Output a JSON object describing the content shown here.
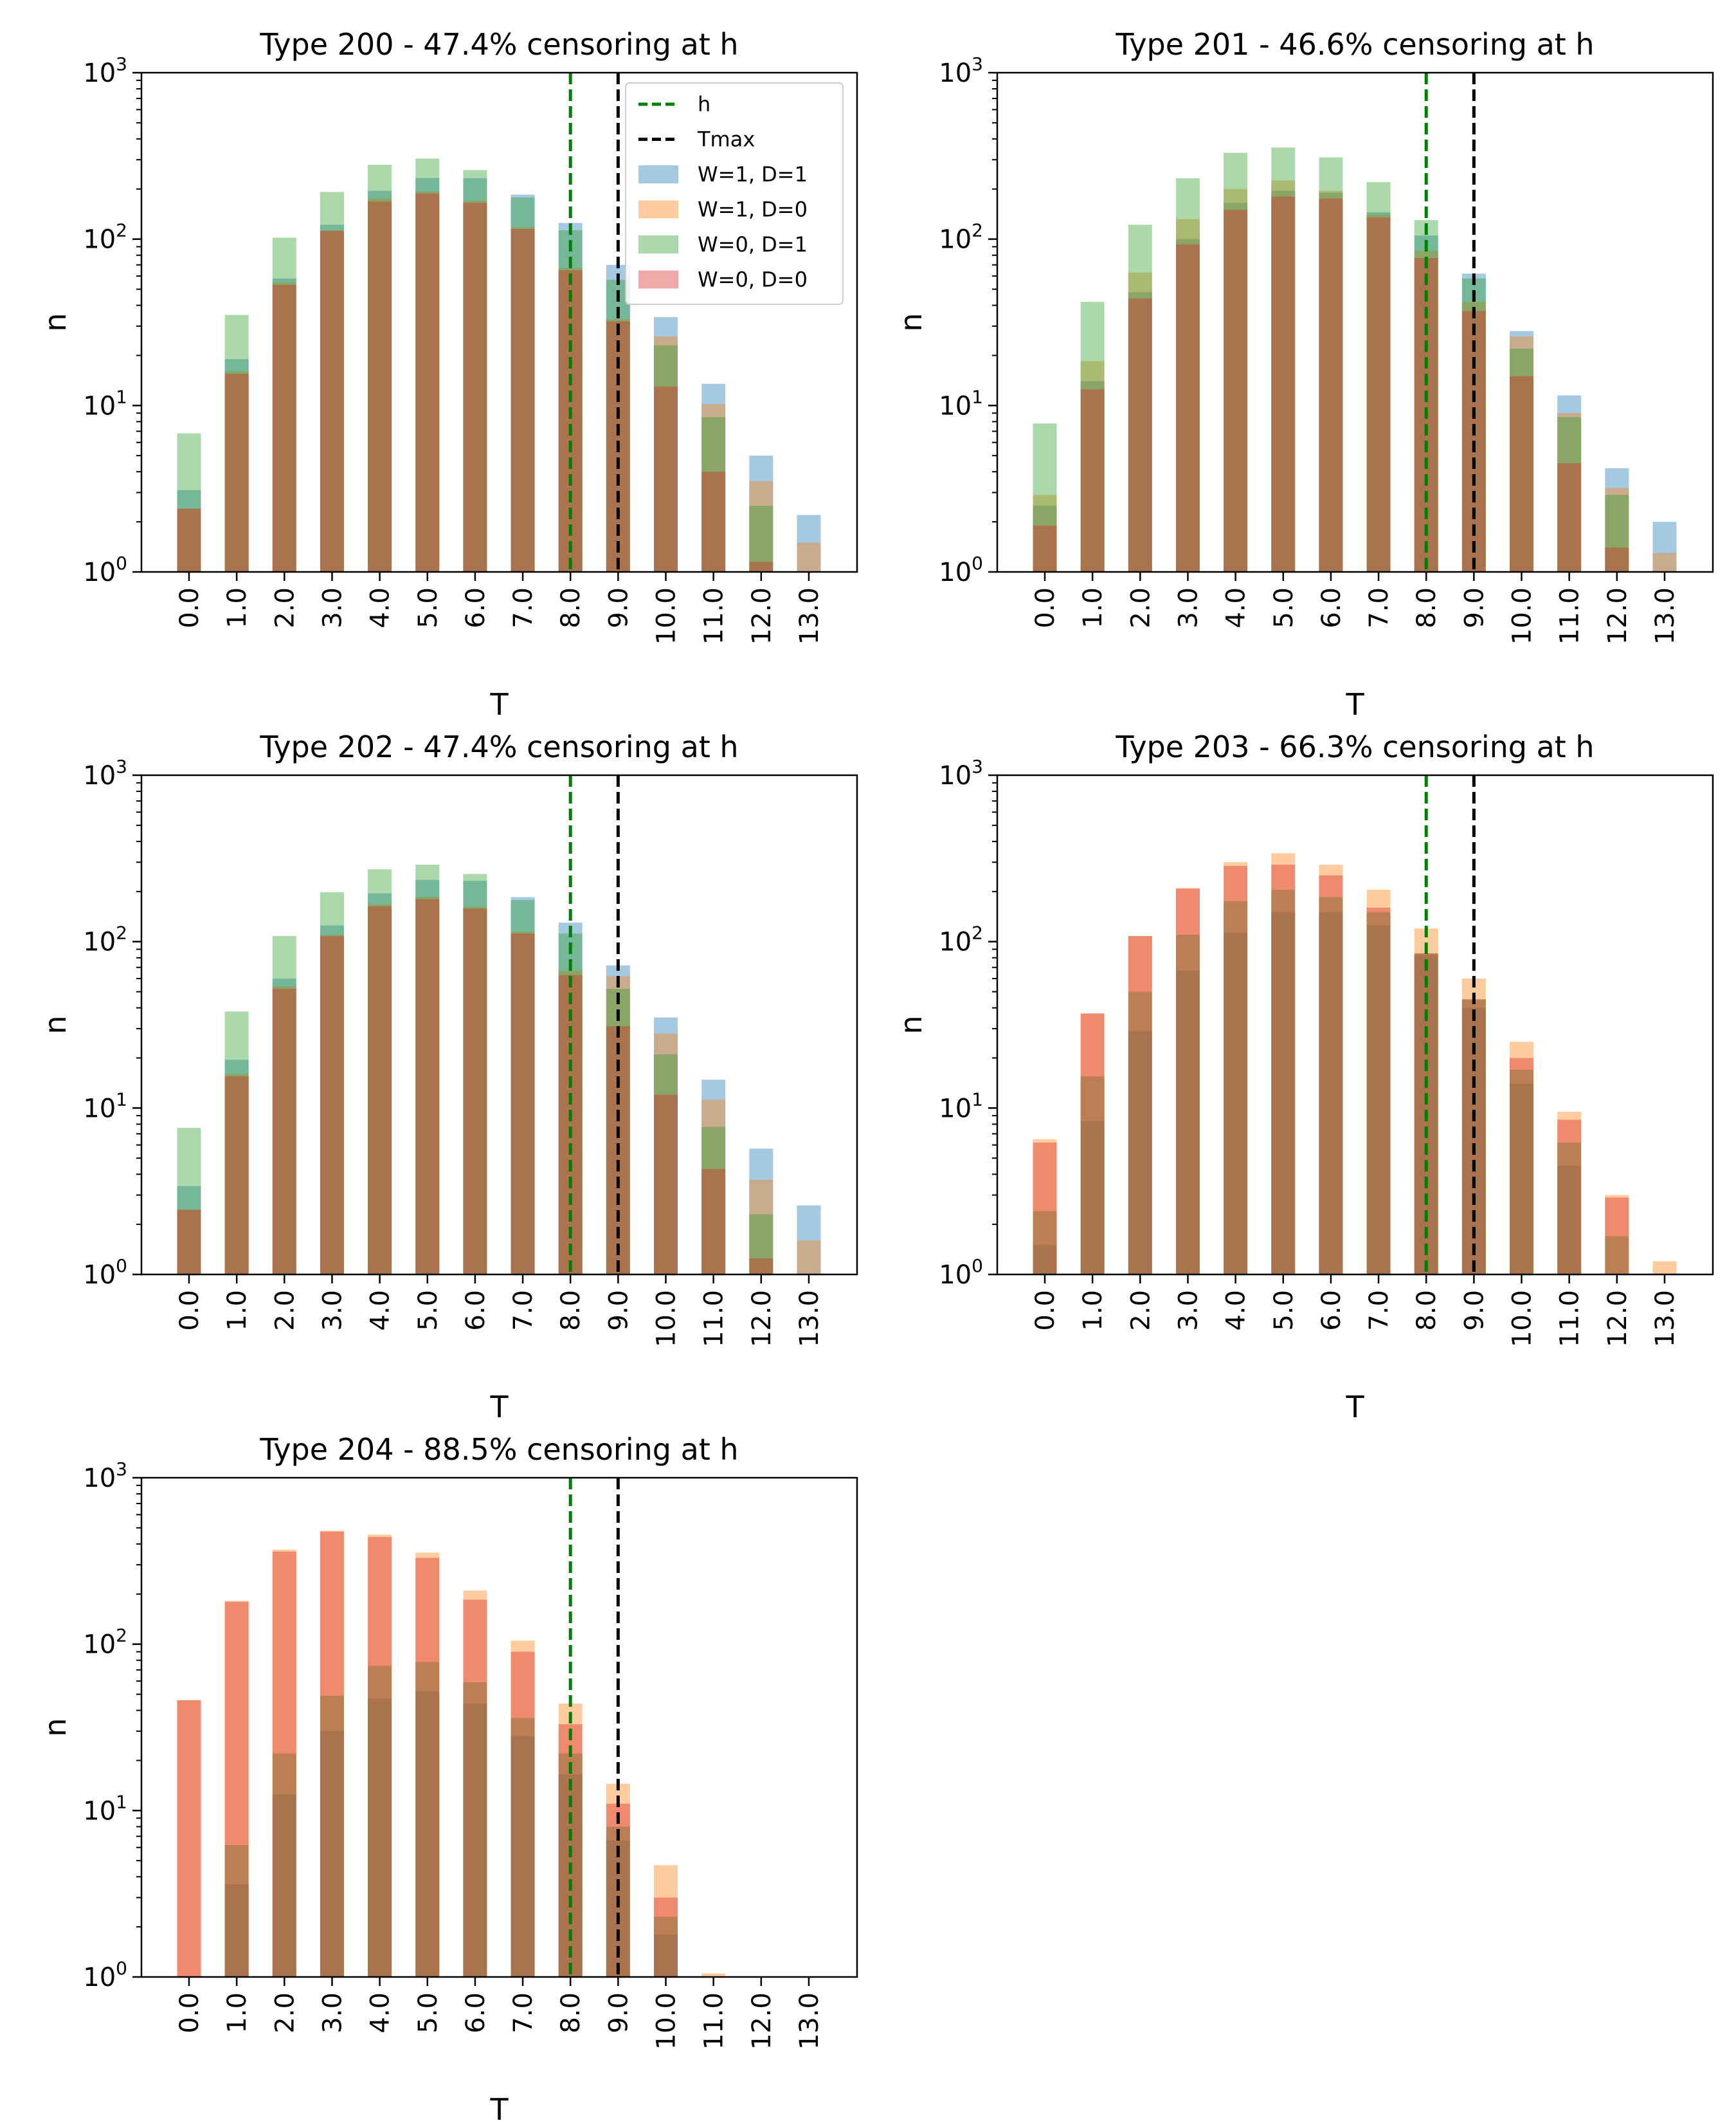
{
  "figure": {
    "legend": {
      "position": "top-right of first panel",
      "entries": [
        {
          "label": "h",
          "kind": "line",
          "color": "#008000",
          "dashed": true
        },
        {
          "label": "Tmax",
          "kind": "line",
          "color": "#000000",
          "dashed": true
        },
        {
          "label": "W=1, D=1",
          "kind": "patch",
          "color": "#1f77b4"
        },
        {
          "label": "W=1, D=0",
          "kind": "patch",
          "color": "#ff7f0e"
        },
        {
          "label": "W=0, D=1",
          "kind": "patch",
          "color": "#2ca02c"
        },
        {
          "label": "W=0, D=0",
          "kind": "patch",
          "color": "#d62728"
        }
      ]
    },
    "series_colors": {
      "W=1, D=1": "#1f77b4",
      "W=1, D=0": "#ff7f0e",
      "W=0, D=1": "#2ca02c",
      "W=0, D=0": "#d62728"
    },
    "bar_alpha": 0.4
  },
  "chart_data": [
    {
      "type": "bar",
      "title": "Type 200 - 47.4% censoring at h",
      "xlabel": "T",
      "ylabel": "n",
      "yscale": "log",
      "ylim": [
        1,
        1000
      ],
      "ytick_base": "10",
      "ytick_exponents": [
        "0",
        "1",
        "2",
        "3"
      ],
      "categories": [
        "0.0",
        "1.0",
        "2.0",
        "3.0",
        "4.0",
        "5.0",
        "6.0",
        "7.0",
        "8.0",
        "9.0",
        "10.0",
        "11.0",
        "12.0",
        "13.0"
      ],
      "h": 8.0,
      "tmax": 9.0,
      "series": [
        {
          "name": "W=1, D=1",
          "values": [
            3.1,
            19,
            58,
            122,
            195,
            233,
            232,
            185,
            125,
            70,
            34,
            13.5,
            5,
            2.2
          ]
        },
        {
          "name": "W=1, D=0",
          "values": [
            2.4,
            16,
            55,
            113,
            175,
            193,
            170,
            118,
            67,
            33,
            26,
            10.2,
            3.5,
            1.5
          ]
        },
        {
          "name": "W=0, D=1",
          "values": [
            6.8,
            35,
            102,
            192,
            280,
            305,
            260,
            178,
            113,
            57,
            23,
            8.5,
            2.5,
            0
          ]
        },
        {
          "name": "W=0, D=0",
          "values": [
            2.4,
            15.5,
            53,
            112,
            168,
            188,
            165,
            115,
            65,
            32,
            13,
            4,
            1.15,
            0
          ]
        }
      ]
    },
    {
      "type": "bar",
      "title": "Type 201 - 46.6% censoring at h",
      "xlabel": "T",
      "ylabel": "n",
      "yscale": "log",
      "ylim": [
        1,
        1000
      ],
      "ytick_base": "10",
      "ytick_exponents": [
        "0",
        "1",
        "2",
        "3"
      ],
      "categories": [
        "0.0",
        "1.0",
        "2.0",
        "3.0",
        "4.0",
        "5.0",
        "6.0",
        "7.0",
        "8.0",
        "9.0",
        "10.0",
        "11.0",
        "12.0",
        "13.0"
      ],
      "h": 8.0,
      "tmax": 9.0,
      "series": [
        {
          "name": "W=1, D=1",
          "values": [
            2.5,
            14,
            48,
            100,
            165,
            195,
            190,
            145,
            105,
            62,
            28,
            11.5,
            4.2,
            2.0
          ]
        },
        {
          "name": "W=1, D=0",
          "values": [
            2.9,
            18.5,
            63,
            132,
            200,
            225,
            195,
            140,
            85,
            42,
            26,
            9,
            3.2,
            1.3
          ]
        },
        {
          "name": "W=0, D=1",
          "values": [
            7.8,
            42,
            122,
            232,
            330,
            355,
            310,
            220,
            130,
            58,
            22,
            8.5,
            2.9,
            0
          ]
        },
        {
          "name": "W=0, D=0",
          "values": [
            1.9,
            12.5,
            44,
            93,
            150,
            180,
            175,
            135,
            77,
            37,
            15,
            4.5,
            1.4,
            0
          ]
        }
      ]
    },
    {
      "type": "bar",
      "title": "Type 202 - 47.4% censoring at h",
      "xlabel": "T",
      "ylabel": "n",
      "yscale": "log",
      "ylim": [
        1,
        1000
      ],
      "ytick_base": "10",
      "ytick_exponents": [
        "0",
        "1",
        "2",
        "3"
      ],
      "categories": [
        "0.0",
        "1.0",
        "2.0",
        "3.0",
        "4.0",
        "5.0",
        "6.0",
        "7.0",
        "8.0",
        "9.0",
        "10.0",
        "11.0",
        "12.0",
        "13.0"
      ],
      "h": 8.0,
      "tmax": 9.0,
      "series": [
        {
          "name": "W=1, D=1",
          "values": [
            3.4,
            19.5,
            60,
            125,
            195,
            235,
            232,
            185,
            130,
            72,
            35,
            14.8,
            5.7,
            2.6
          ]
        },
        {
          "name": "W=1, D=0",
          "values": [
            2.45,
            16,
            54,
            110,
            168,
            185,
            162,
            115,
            67,
            62,
            28,
            11.2,
            3.7,
            1.6
          ]
        },
        {
          "name": "W=0, D=1",
          "values": [
            7.6,
            38,
            108,
            198,
            272,
            290,
            255,
            178,
            112,
            52,
            21,
            7.7,
            2.3,
            0
          ]
        },
        {
          "name": "W=0, D=0",
          "values": [
            2.45,
            15.5,
            52,
            108,
            163,
            180,
            158,
            112,
            63,
            31,
            12,
            4.3,
            1.25,
            0
          ]
        }
      ]
    },
    {
      "type": "bar",
      "title": "Type 203 - 66.3% censoring at h",
      "xlabel": "T",
      "ylabel": "n",
      "yscale": "log",
      "ylim": [
        1,
        1000
      ],
      "ytick_base": "10",
      "ytick_exponents": [
        "0",
        "1",
        "2",
        "3"
      ],
      "categories": [
        "0.0",
        "1.0",
        "2.0",
        "3.0",
        "4.0",
        "5.0",
        "6.0",
        "7.0",
        "8.0",
        "9.0",
        "10.0",
        "11.0",
        "12.0",
        "13.0"
      ],
      "h": 8.0,
      "tmax": 9.0,
      "series": [
        {
          "name": "W=1, D=1",
          "values": [
            1.5,
            8.3,
            29,
            67,
            113,
            150,
            150,
            125,
            83,
            40,
            14,
            4.5,
            1.0,
            0
          ]
        },
        {
          "name": "W=1, D=0",
          "values": [
            6.5,
            37,
            108,
            210,
            300,
            340,
            290,
            205,
            120,
            60,
            25,
            9.5,
            3.0,
            1.2
          ]
        },
        {
          "name": "W=0, D=1",
          "values": [
            2.4,
            15.5,
            50,
            110,
            175,
            205,
            185,
            150,
            85,
            45,
            17,
            6.2,
            1.7,
            0
          ]
        },
        {
          "name": "W=0, D=0",
          "values": [
            6.2,
            37,
            108,
            208,
            285,
            290,
            250,
            160,
            85,
            45,
            20,
            8.5,
            2.9,
            0
          ]
        }
      ]
    },
    {
      "type": "bar",
      "title": "Type 204 - 88.5% censoring at h",
      "xlabel": "T",
      "ylabel": "n",
      "yscale": "log",
      "ylim": [
        1,
        1000
      ],
      "ytick_base": "10",
      "ytick_exponents": [
        "0",
        "1",
        "2",
        "3"
      ],
      "categories": [
        "0.0",
        "1.0",
        "2.0",
        "3.0",
        "4.0",
        "5.0",
        "6.0",
        "7.0",
        "8.0",
        "9.0",
        "10.0",
        "11.0",
        "12.0",
        "13.0"
      ],
      "h": 8.0,
      "tmax": 9.0,
      "series": [
        {
          "name": "W=1, D=1",
          "values": [
            0,
            3.6,
            12.5,
            30,
            47,
            52,
            44,
            28,
            16.5,
            6.6,
            1.8,
            0,
            0,
            0
          ]
        },
        {
          "name": "W=1, D=0",
          "values": [
            46,
            182,
            370,
            480,
            455,
            355,
            210,
            105,
            44,
            14.5,
            4.7,
            1.05,
            0,
            0
          ]
        },
        {
          "name": "W=0, D=1",
          "values": [
            0,
            6.2,
            22,
            49,
            74,
            78,
            59,
            36,
            22,
            8,
            2.3,
            0,
            0,
            0
          ]
        },
        {
          "name": "W=0, D=0",
          "values": [
            46,
            180,
            360,
            475,
            440,
            330,
            185,
            90,
            33,
            11,
            3.0,
            0,
            0,
            0
          ]
        }
      ]
    }
  ]
}
